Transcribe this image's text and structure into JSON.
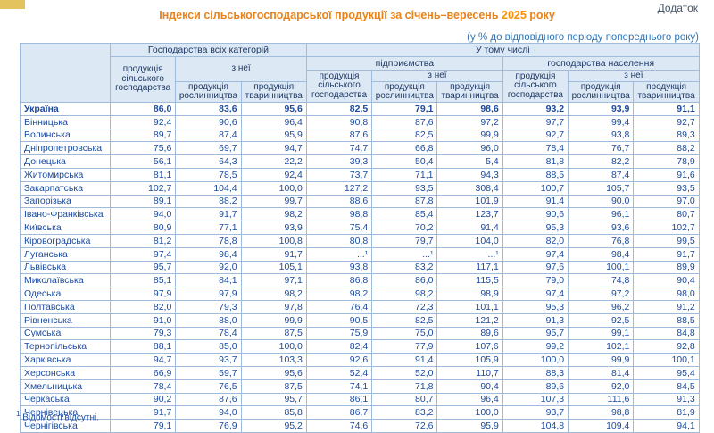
{
  "page": {
    "corner_note": "Додаток",
    "title_prefix": "Індекси сільськогосподарської продукції за січень–вересень ",
    "title_year": "2025",
    "title_suffix": " року",
    "subtitle": "(у % до відповідного періоду попереднього року)",
    "footnote_marker": "1",
    "footnote_text": " Відомості відсутні."
  },
  "colors": {
    "title_orange": "#E8831C",
    "year_orange": "#FF8F00",
    "header_fill": "#DCE9F5",
    "border_blue": "#9FBBDB",
    "outer_border_blue": "#6E93BF",
    "data_text_blue": "#1B4A9E",
    "header_text_navy": "#1F3864",
    "subtitle_blue": "#2E74B5",
    "corner_box_yellow": "#E3C35E"
  },
  "table": {
    "headers": {
      "all_categories": "Господарства всіх категорій",
      "including": "У тому числі",
      "enterprises": "підприємства",
      "households": "господарства населення",
      "agri_output": "продукція сільського господарства",
      "of_which": "з неї",
      "crop_output": "продукція рослинництва",
      "livestock_output": "продукція тваринництва"
    },
    "rows": [
      {
        "region": "Україна",
        "bold": true,
        "values": [
          "86,0",
          "83,6",
          "95,6",
          "82,5",
          "79,1",
          "98,6",
          "93,2",
          "93,9",
          "91,1"
        ]
      },
      {
        "region": "Вінницька",
        "bold": false,
        "values": [
          "92,4",
          "90,6",
          "96,4",
          "90,8",
          "87,6",
          "97,2",
          "97,7",
          "99,4",
          "92,7"
        ]
      },
      {
        "region": "Волинська",
        "bold": false,
        "values": [
          "89,7",
          "87,4",
          "95,9",
          "87,6",
          "82,5",
          "99,9",
          "92,7",
          "93,8",
          "89,3"
        ]
      },
      {
        "region": "Дніпропетровська",
        "bold": false,
        "values": [
          "75,6",
          "69,7",
          "94,7",
          "74,7",
          "66,8",
          "96,0",
          "78,4",
          "76,7",
          "88,2"
        ]
      },
      {
        "region": "Донецька",
        "bold": false,
        "values": [
          "56,1",
          "64,3",
          "22,2",
          "39,3",
          "50,4",
          "5,4",
          "81,8",
          "82,2",
          "78,9"
        ]
      },
      {
        "region": "Житомирська",
        "bold": false,
        "values": [
          "81,1",
          "78,5",
          "92,4",
          "73,7",
          "71,1",
          "94,3",
          "88,5",
          "87,4",
          "91,6"
        ]
      },
      {
        "region": "Закарпатська",
        "bold": false,
        "values": [
          "102,7",
          "104,4",
          "100,0",
          "127,2",
          "93,5",
          "308,4",
          "100,7",
          "105,7",
          "93,5"
        ]
      },
      {
        "region": "Запорізька",
        "bold": false,
        "values": [
          "89,1",
          "88,2",
          "99,7",
          "88,6",
          "87,8",
          "101,9",
          "91,4",
          "90,0",
          "97,0"
        ]
      },
      {
        "region": "Івано-Франківська",
        "bold": false,
        "values": [
          "94,0",
          "91,7",
          "98,2",
          "98,8",
          "85,4",
          "123,7",
          "90,6",
          "96,1",
          "80,7"
        ]
      },
      {
        "region": "Київська",
        "bold": false,
        "values": [
          "80,9",
          "77,1",
          "93,9",
          "75,4",
          "70,2",
          "91,4",
          "95,3",
          "93,6",
          "102,7"
        ]
      },
      {
        "region": "Кіровоградська",
        "bold": false,
        "values": [
          "81,2",
          "78,8",
          "100,8",
          "80,8",
          "79,7",
          "104,0",
          "82,0",
          "76,8",
          "99,5"
        ]
      },
      {
        "region": "Луганська",
        "bold": false,
        "values": [
          "97,4",
          "98,4",
          "91,7",
          "...¹",
          "...¹",
          "...¹",
          "97,4",
          "98,4",
          "91,7"
        ]
      },
      {
        "region": "Львівська",
        "bold": false,
        "values": [
          "95,7",
          "92,0",
          "105,1",
          "93,8",
          "83,2",
          "117,1",
          "97,6",
          "100,1",
          "89,9"
        ]
      },
      {
        "region": "Миколаївська",
        "bold": false,
        "values": [
          "85,1",
          "84,1",
          "97,1",
          "86,8",
          "86,0",
          "115,5",
          "79,0",
          "74,8",
          "90,4"
        ]
      },
      {
        "region": "Одеська",
        "bold": false,
        "values": [
          "97,9",
          "97,9",
          "98,2",
          "98,2",
          "98,2",
          "98,9",
          "97,4",
          "97,2",
          "98,0"
        ]
      },
      {
        "region": "Полтавська",
        "bold": false,
        "values": [
          "82,0",
          "79,3",
          "97,8",
          "76,4",
          "72,3",
          "101,1",
          "95,3",
          "96,2",
          "91,2"
        ]
      },
      {
        "region": "Рівненська",
        "bold": false,
        "values": [
          "91,0",
          "88,0",
          "99,9",
          "90,5",
          "82,5",
          "121,2",
          "91,3",
          "92,5",
          "88,5"
        ]
      },
      {
        "region": "Сумська",
        "bold": false,
        "values": [
          "79,3",
          "78,4",
          "87,5",
          "75,9",
          "75,0",
          "89,6",
          "95,7",
          "99,1",
          "84,8"
        ]
      },
      {
        "region": "Тернопільська",
        "bold": false,
        "values": [
          "88,1",
          "85,0",
          "100,0",
          "82,4",
          "77,9",
          "107,6",
          "99,2",
          "102,1",
          "92,8"
        ]
      },
      {
        "region": "Харківська",
        "bold": false,
        "values": [
          "94,7",
          "93,7",
          "103,3",
          "92,6",
          "91,4",
          "105,9",
          "100,0",
          "99,9",
          "100,1"
        ]
      },
      {
        "region": "Херсонська",
        "bold": false,
        "values": [
          "66,9",
          "59,7",
          "95,6",
          "52,4",
          "52,0",
          "110,7",
          "88,3",
          "81,4",
          "95,4"
        ]
      },
      {
        "region": "Хмельницька",
        "bold": false,
        "values": [
          "78,4",
          "76,5",
          "87,5",
          "74,1",
          "71,8",
          "90,4",
          "89,6",
          "92,0",
          "84,5"
        ]
      },
      {
        "region": "Черкаська",
        "bold": false,
        "values": [
          "90,2",
          "87,6",
          "95,7",
          "86,1",
          "80,7",
          "96,4",
          "107,3",
          "111,6",
          "91,3"
        ]
      },
      {
        "region": "Чернівецька",
        "bold": false,
        "values": [
          "91,7",
          "94,0",
          "85,8",
          "86,7",
          "83,2",
          "100,0",
          "93,7",
          "98,8",
          "81,9"
        ]
      },
      {
        "region": "Чернігівська",
        "bold": false,
        "values": [
          "79,1",
          "76,9",
          "95,2",
          "74,6",
          "72,6",
          "95,9",
          "104,8",
          "109,4",
          "94,1"
        ]
      }
    ]
  }
}
